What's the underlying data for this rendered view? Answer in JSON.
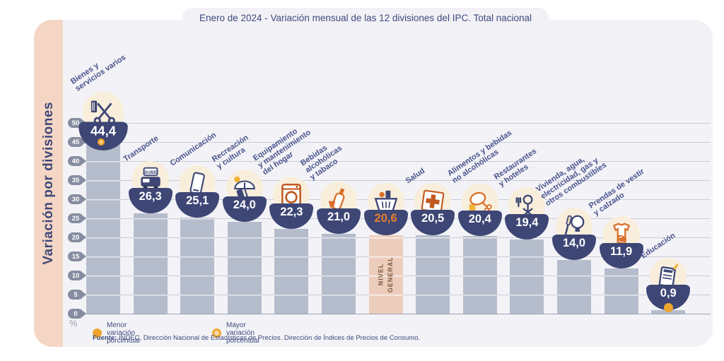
{
  "title": "Enero de 2024 - Variación mensual de las 12 divisiones del IPC. Total nacional",
  "sidebar_label": "Variación por divisiones",
  "y_axis": {
    "unit": "%",
    "ticks": [
      50,
      45,
      40,
      35,
      30,
      25,
      20,
      15,
      10,
      5,
      0
    ]
  },
  "legend": [
    {
      "marker": "plain-dot",
      "label": "Menor variación porcentual"
    },
    {
      "marker": "ringed-dot",
      "label": "Mayor variación porcentual"
    }
  ],
  "source": {
    "prefix": "Fuente:",
    "text": " INDEC, Dirección Nacional de Estadísticas de Precios. Dirección de Índices de Precios de Consumo."
  },
  "colors": {
    "card_bg": "#f3f3f7",
    "strip_bg": "#f5d6c5",
    "navy": "#3d4675",
    "label_navy": "#49538c",
    "bar_gray": "#b5bccb",
    "bar_highlight": "#eccdbb",
    "icon_circle_bg": "#f8eedb",
    "orange_accent": "#d9702c",
    "dot_orange": "#eea62f",
    "highlight_value_orange": "#e87f2d"
  },
  "chart_data": {
    "type": "bar",
    "title": "Enero de 2024 - Variación mensual de las 12 divisiones del IPC. Total nacional",
    "ylabel": "Variación por divisiones",
    "unit": "%",
    "ylim": [
      0,
      50
    ],
    "grid": true,
    "highlight_bar_text": "NIVEL\nGENERAL",
    "max_marker_index": 0,
    "min_marker_index": 12,
    "categories": [
      {
        "label": "Bienes y\nservicios varios",
        "value": 44.4,
        "value_label": "44,4",
        "icon": "scissors-comb-icon"
      },
      {
        "label": "Transporte",
        "value": 26.3,
        "value_label": "26,3",
        "icon": "bus-sube-icon"
      },
      {
        "label": "Comunicación",
        "value": 25.1,
        "value_label": "25,1",
        "icon": "smartphone-icon"
      },
      {
        "label": "Recreación\ny cultura",
        "value": 24.0,
        "value_label": "24,0",
        "icon": "beach-umbrella-icon"
      },
      {
        "label": "Equipamiento\ny mantenimiento\ndel hogar",
        "value": 22.3,
        "value_label": "22,3",
        "icon": "washing-machine-icon"
      },
      {
        "label": "Bebidas\nalcohólicas\ny tabaco",
        "value": 21.0,
        "value_label": "21,0",
        "icon": "bottle-glass-icon"
      },
      {
        "label": "",
        "value": 20.6,
        "value_label": "20,6",
        "icon": "shopping-basket-icon",
        "highlight": true
      },
      {
        "label": "Salud",
        "value": 20.5,
        "value_label": "20,5",
        "icon": "medical-cross-icon"
      },
      {
        "label": "Alimentos y bebidas\nno alcohólicas",
        "value": 20.4,
        "value_label": "20,4",
        "icon": "chicken-food-icon"
      },
      {
        "label": "Restaurantes\ny hoteles",
        "value": 19.4,
        "value_label": "19,4",
        "icon": "restaurant-fork-icon"
      },
      {
        "label": "Vivienda, agua,\nelectricidad, gas y\notros combustibles",
        "value": 14.0,
        "value_label": "14,0",
        "icon": "lightbulb-tools-icon"
      },
      {
        "label": "Prendas de vestir\ny calzado",
        "value": 11.9,
        "value_label": "11,9",
        "icon": "tshirt-shoe-icon"
      },
      {
        "label": "Educación",
        "value": 0.9,
        "value_label": "0,9",
        "icon": "notebook-pencil-icon"
      }
    ]
  }
}
